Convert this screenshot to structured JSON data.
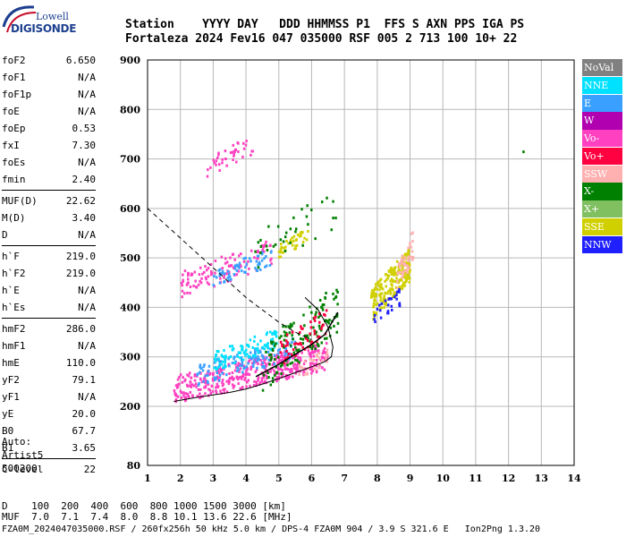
{
  "logo": {
    "lowell": "Lowell",
    "digisonde": "DIGISONDE"
  },
  "header": {
    "line1": "Station    YYYY DAY   DDD HHMMSS P1  FFS S AXN PPS IGA PS",
    "line2": "Fortaleza 2024 Fev16 047 035000 RSF 005 2 713 100 10+ 22"
  },
  "params": {
    "g1": [
      {
        "label": "foF2",
        "value": "6.650"
      },
      {
        "label": "foF1",
        "value": "N/A"
      },
      {
        "label": "foF1p",
        "value": "N/A"
      },
      {
        "label": "foE",
        "value": "N/A"
      },
      {
        "label": "foEp",
        "value": "0.53"
      },
      {
        "label": "fxI",
        "value": "7.30"
      },
      {
        "label": "foEs",
        "value": "N/A"
      },
      {
        "label": "fmin",
        "value": "2.40"
      }
    ],
    "g2": [
      {
        "label": "MUF(D)",
        "value": "22.62"
      },
      {
        "label": "M(D)",
        "value": "3.40"
      },
      {
        "label": "D",
        "value": "N/A"
      }
    ],
    "g3": [
      {
        "label": "h`F",
        "value": "219.0"
      },
      {
        "label": "h`F2",
        "value": "219.0"
      },
      {
        "label": "h`E",
        "value": "N/A"
      },
      {
        "label": "h`Es",
        "value": "N/A"
      }
    ],
    "g4": [
      {
        "label": "hmF2",
        "value": "286.0"
      },
      {
        "label": "hmF1",
        "value": "N/A"
      },
      {
        "label": "hmE",
        "value": "110.0"
      },
      {
        "label": "yF2",
        "value": "79.1"
      },
      {
        "label": "yF1",
        "value": "N/A"
      },
      {
        "label": "yE",
        "value": "20.0"
      },
      {
        "label": "B0",
        "value": "67.7"
      },
      {
        "label": "B1",
        "value": "3.65"
      }
    ],
    "g5": [
      {
        "label": "C-level",
        "value": "22"
      }
    ]
  },
  "artist": {
    "line1": "Auto:",
    "line2": "Artist5",
    "line3": "500200"
  },
  "legend": [
    {
      "label": "NoVal",
      "color": "#808080"
    },
    {
      "label": "NNE",
      "color": "#00e0ff"
    },
    {
      "label": "E",
      "color": "#3aa0ff"
    },
    {
      "label": "W",
      "color": "#b000b0"
    },
    {
      "label": "Vo-",
      "color": "#ff40c0"
    },
    {
      "label": "Vo+",
      "color": "#ff0040"
    },
    {
      "label": "SSW",
      "color": "#ffb0b0"
    },
    {
      "label": "X-",
      "color": "#008000"
    },
    {
      "label": "X+",
      "color": "#80c060"
    },
    {
      "label": "SSE",
      "color": "#d0d000"
    },
    {
      "label": "NNW",
      "color": "#2020ff"
    }
  ],
  "chart_data": {
    "type": "scatter",
    "x_ticks": [
      "1",
      "2",
      "3",
      "4",
      "5",
      "6",
      "7",
      "8",
      "9",
      "10",
      "11",
      "12",
      "13",
      "14"
    ],
    "y_ticks": [
      "80",
      "200",
      "300",
      "400",
      "500",
      "600",
      "700",
      "800",
      "900"
    ],
    "xlim": [
      1,
      14
    ],
    "ylim": [
      80,
      900
    ],
    "grid": true,
    "legend_position": "right",
    "clusters": [
      {
        "color": "#ff40c0",
        "x_range": [
          1.8,
          6.5
        ],
        "y_range": [
          205,
          330
        ],
        "count": 420
      },
      {
        "color": "#3aa0ff",
        "x_range": [
          2.5,
          5.5
        ],
        "y_range": [
          240,
          340
        ],
        "count": 120
      },
      {
        "color": "#00e0ff",
        "x_range": [
          3.0,
          5.0
        ],
        "y_range": [
          270,
          360
        ],
        "count": 100
      },
      {
        "color": "#008000",
        "x_range": [
          4.5,
          6.8
        ],
        "y_range": [
          230,
          450
        ],
        "count": 140
      },
      {
        "color": "#ff0040",
        "x_range": [
          5.0,
          6.5
        ],
        "y_range": [
          280,
          400
        ],
        "count": 60
      },
      {
        "color": "#ffb0b0",
        "x_range": [
          5.5,
          6.5
        ],
        "y_range": [
          250,
          320
        ],
        "count": 30
      },
      {
        "color": "#ff40c0",
        "x_range": [
          2.0,
          4.8
        ],
        "y_range": [
          415,
          540
        ],
        "count": 110
      },
      {
        "color": "#3aa0ff",
        "x_range": [
          3.0,
          4.8
        ],
        "y_range": [
          440,
          520
        ],
        "count": 60
      },
      {
        "color": "#d0d000",
        "x_range": [
          5.0,
          5.9
        ],
        "y_range": [
          500,
          560
        ],
        "count": 40
      },
      {
        "color": "#d0d000",
        "x_range": [
          7.8,
          9.0
        ],
        "y_range": [
          370,
          520
        ],
        "count": 220
      },
      {
        "color": "#ffb0b0",
        "x_range": [
          8.6,
          9.1
        ],
        "y_range": [
          420,
          560
        ],
        "count": 50
      },
      {
        "color": "#2020ff",
        "x_range": [
          7.9,
          8.7
        ],
        "y_range": [
          360,
          440
        ],
        "count": 30
      },
      {
        "color": "#ff40c0",
        "x_range": [
          2.8,
          4.2
        ],
        "y_range": [
          660,
          750
        ],
        "count": 40
      },
      {
        "color": "#008000",
        "x_range": [
          4.2,
          6.8
        ],
        "y_range": [
          470,
          640
        ],
        "count": 35
      },
      {
        "color": "#008000",
        "x_range": [
          12.4,
          12.5
        ],
        "y_range": [
          712,
          716
        ],
        "count": 1
      }
    ],
    "trace_solid": [
      [
        1.8,
        210
      ],
      [
        2.5,
        218
      ],
      [
        3,
        223
      ],
      [
        3.5,
        228
      ],
      [
        4,
        235
      ],
      [
        4.5,
        245
      ],
      [
        5,
        256
      ],
      [
        5.5,
        268
      ],
      [
        6,
        280
      ],
      [
        6.4,
        290
      ],
      [
        6.6,
        300
      ],
      [
        6.65,
        320
      ],
      [
        6.5,
        360
      ],
      [
        6.2,
        395
      ],
      [
        5.8,
        420
      ]
    ],
    "trace_dashed": [
      [
        1,
        600
      ],
      [
        1.5,
        570
      ],
      [
        2,
        540
      ],
      [
        2.5,
        510
      ],
      [
        3,
        480
      ],
      [
        3.5,
        450
      ],
      [
        4,
        420
      ],
      [
        4.5,
        395
      ],
      [
        5,
        370
      ],
      [
        5.5,
        350
      ],
      [
        6,
        335
      ]
    ],
    "trace_xtrace": [
      [
        4.3,
        260
      ],
      [
        5,
        285
      ],
      [
        5.5,
        305
      ],
      [
        6,
        325
      ],
      [
        6.4,
        345
      ],
      [
        6.8,
        390
      ]
    ]
  },
  "bottom": {
    "line1": "D    100  200  400  600  800 1000 1500 3000 [km]",
    "line2": "MUF  7.0  7.1  7.4  8.0  8.8 10.1 13.6 22.6 [MHz]"
  },
  "footer": "FZA0M_2024047035000.RSF / 260fx256h 50 kHz 5.0 km / DPS-4 FZA0M 904 / 3.9 S 321.6 E   Ion2Png 1.3.20"
}
